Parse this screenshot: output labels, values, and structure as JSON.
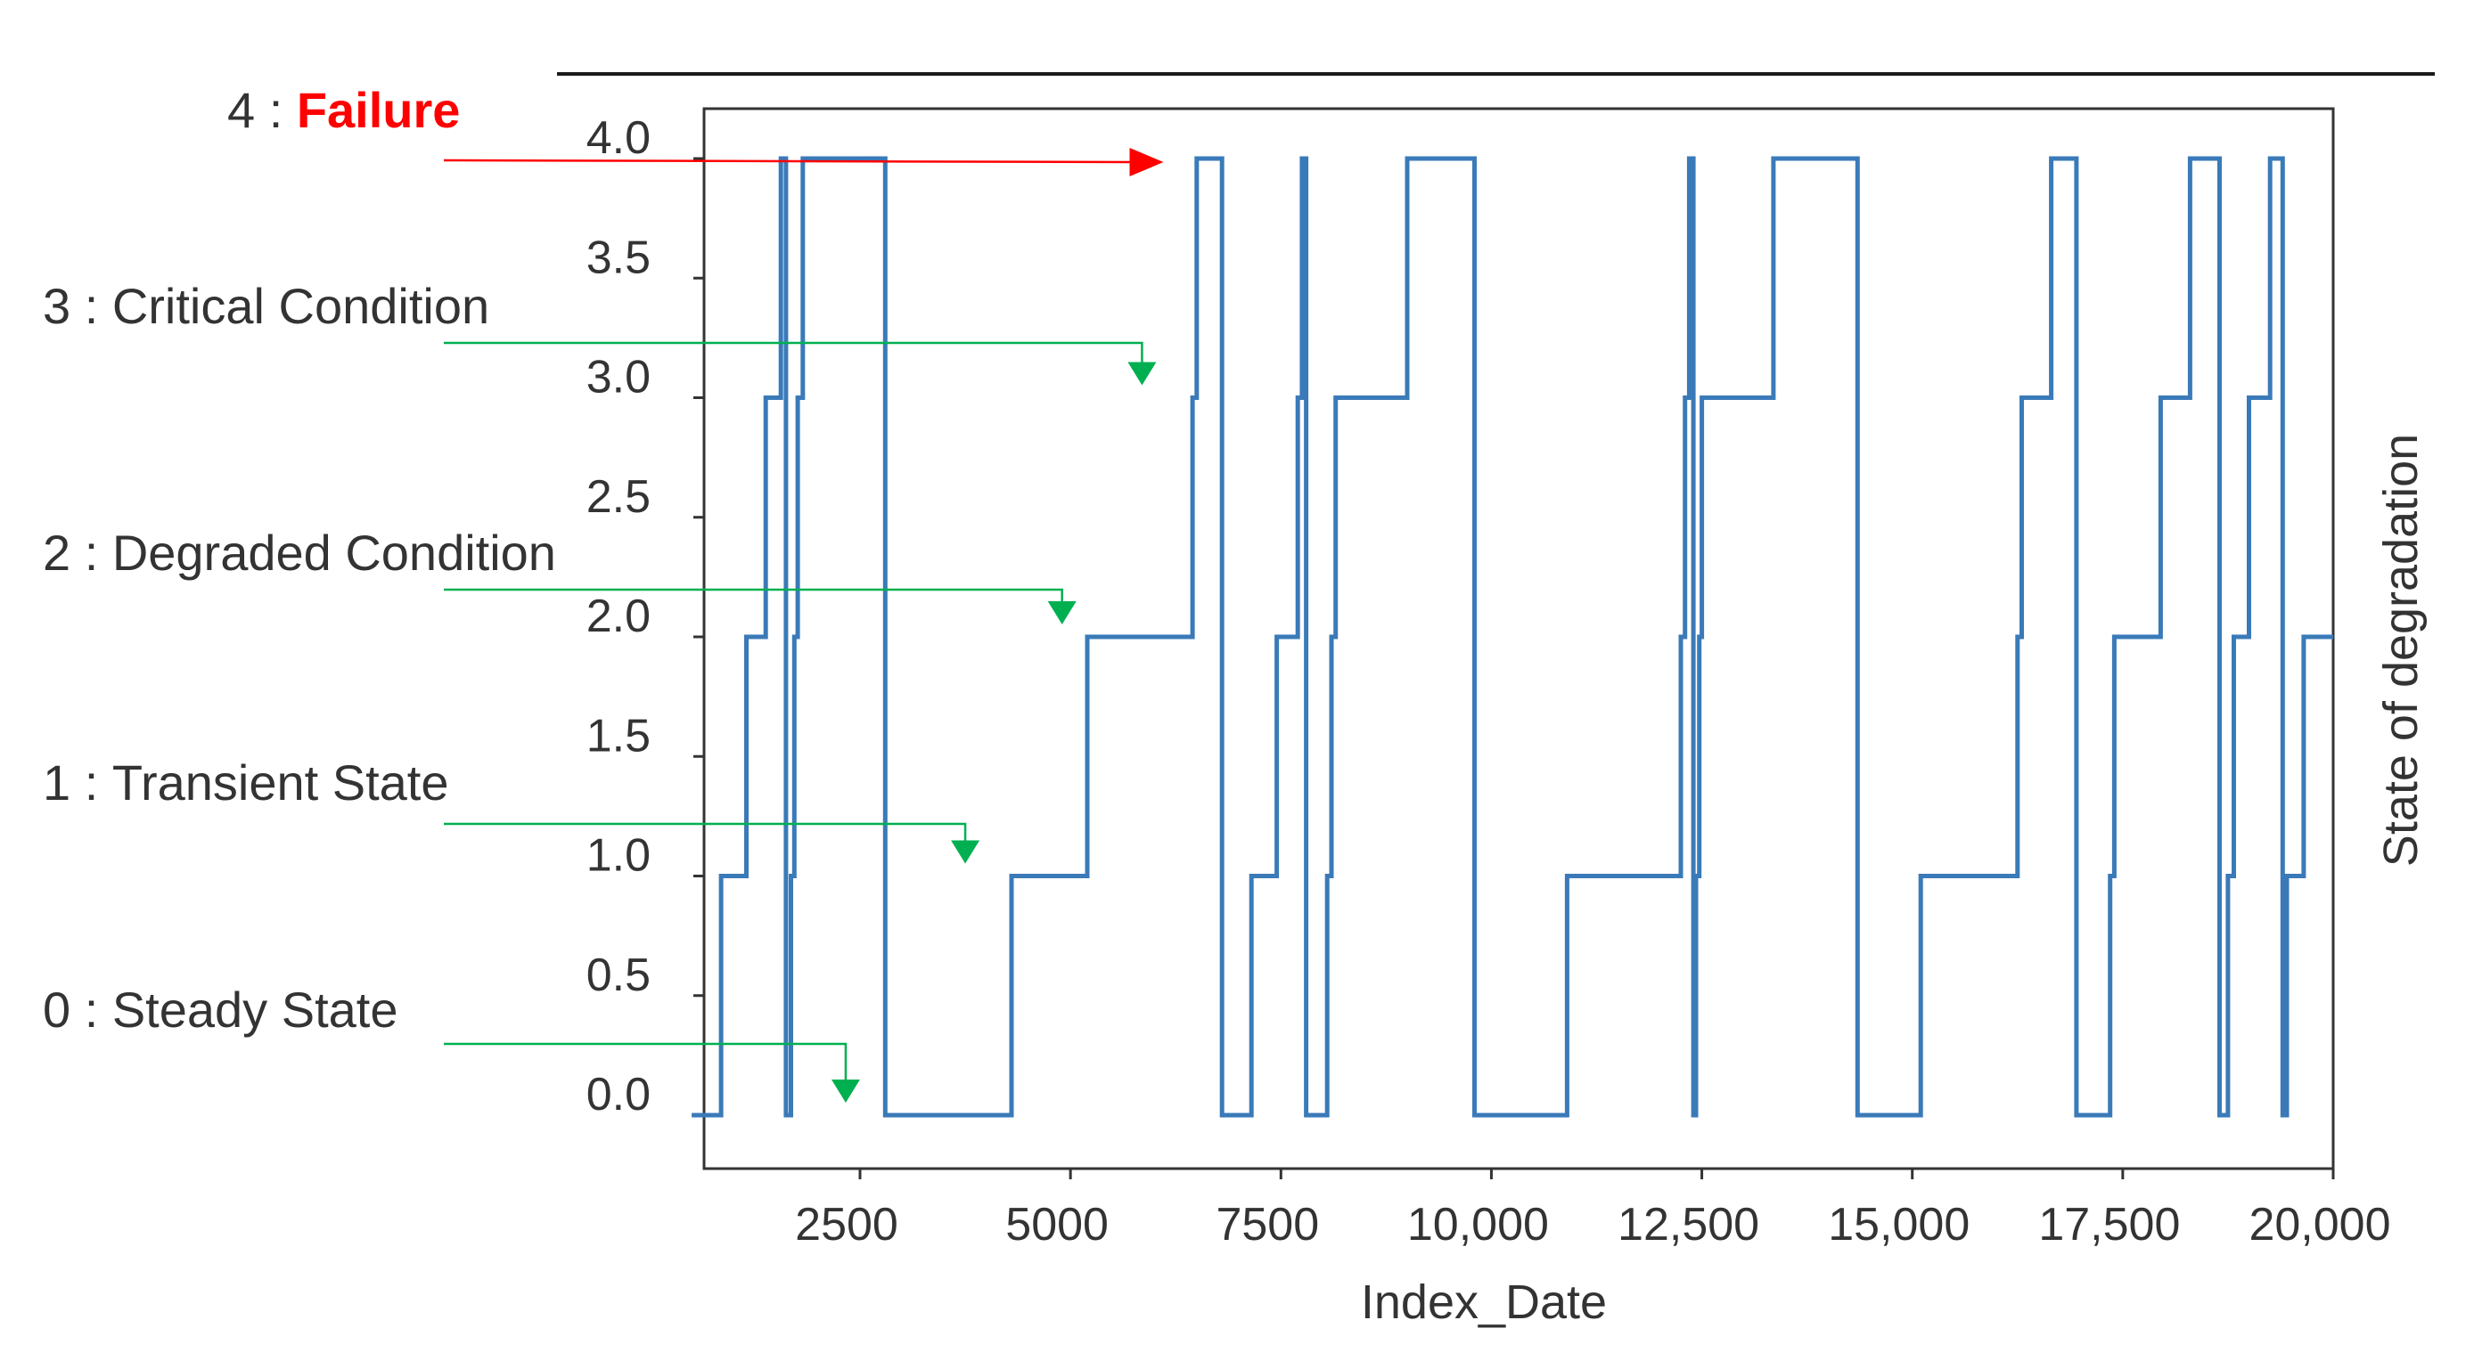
{
  "chart_data": {
    "type": "line",
    "title": "",
    "xlabel": "Index_Date",
    "ylabel": "State of degradation",
    "xlim": [
      500,
      20000
    ],
    "ylim": [
      -0.1,
      4.2
    ],
    "grid": false,
    "line_color": "#3a7ab8",
    "x_ticks": [
      {
        "value": 2500,
        "label": "2500"
      },
      {
        "value": 5000,
        "label": "5000"
      },
      {
        "value": 7500,
        "label": "7500"
      },
      {
        "value": 10000,
        "label": "10,000"
      },
      {
        "value": 12500,
        "label": "12,500"
      },
      {
        "value": 15000,
        "label": "15,000"
      },
      {
        "value": 17500,
        "label": "17,500"
      },
      {
        "value": 20000,
        "label": "20,000"
      }
    ],
    "y_ticks": [
      {
        "value": 0.0,
        "label": "0.0"
      },
      {
        "value": 0.5,
        "label": "0.5"
      },
      {
        "value": 1.0,
        "label": "1.0"
      },
      {
        "value": 1.5,
        "label": "1.5"
      },
      {
        "value": 2.0,
        "label": "2.0"
      },
      {
        "value": 2.5,
        "label": "2.5"
      },
      {
        "value": 3.0,
        "label": "3.0"
      },
      {
        "value": 3.5,
        "label": "3.5"
      },
      {
        "value": 4.0,
        "label": "4.0"
      }
    ],
    "series": [
      {
        "name": "State of degradation",
        "x": [
          500,
          850,
          850,
          1150,
          1150,
          1380,
          1380,
          1560,
          1560,
          1620,
          1620,
          1680,
          1680,
          1720,
          1720,
          1760,
          1760,
          1820,
          1820,
          2800,
          2800,
          4300,
          4300,
          5200,
          5200,
          6450,
          6450,
          6500,
          6500,
          6800,
          6800,
          7150,
          7150,
          7450,
          7450,
          7700,
          7700,
          7750,
          7750,
          7800,
          7800,
          8050,
          8050,
          8100,
          8100,
          8150,
          8150,
          9000,
          9000,
          9800,
          9800,
          10900,
          10900,
          12250,
          12250,
          12300,
          12300,
          12350,
          12350,
          12400,
          12400,
          12430,
          12430,
          12470,
          12470,
          12500,
          12500,
          13350,
          13350,
          14350,
          14350,
          15100,
          15100,
          16250,
          16250,
          16300,
          16300,
          16650,
          16650,
          16950,
          16950,
          17350,
          17350,
          17400,
          17400,
          17950,
          17950,
          18300,
          18300,
          18650,
          18650,
          18750,
          18750,
          18820,
          18820,
          19000,
          19000,
          19250,
          19250,
          19400,
          19400,
          19450,
          19450,
          19650,
          19650,
          20000
        ],
        "y": [
          0,
          0,
          1,
          1,
          2,
          2,
          3,
          3,
          4,
          4,
          0,
          0,
          1,
          1,
          2,
          2,
          3,
          3,
          4,
          4,
          0,
          0,
          1,
          1,
          2,
          2,
          3,
          3,
          4,
          4,
          0,
          0,
          1,
          1,
          2,
          2,
          3,
          3,
          4,
          4,
          0,
          0,
          1,
          1,
          2,
          2,
          3,
          3,
          4,
          4,
          0,
          0,
          1,
          1,
          2,
          2,
          3,
          3,
          4,
          4,
          0,
          0,
          1,
          1,
          2,
          2,
          3,
          3,
          4,
          4,
          0,
          0,
          1,
          1,
          2,
          2,
          3,
          3,
          4,
          4,
          0,
          0,
          1,
          1,
          2,
          2,
          3,
          3,
          4,
          4,
          0,
          0,
          1,
          1,
          2,
          2,
          3,
          3,
          4,
          4,
          0,
          0,
          1,
          1,
          2,
          2
        ]
      }
    ],
    "annotations": [
      {
        "state": 4,
        "prefix": "4 : ",
        "label": "Failure",
        "prefix_color": "#333333",
        "label_color": "#ff0000",
        "arrow_color": "#ff0000",
        "target_x": 6020,
        "target_y": 4.0
      },
      {
        "state": 3,
        "prefix": "3 : ",
        "label": "Critical Condition",
        "prefix_color": "#333333",
        "label_color": "#333333",
        "arrow_color": "#00b050",
        "target_x": 5850,
        "target_y": 3.0
      },
      {
        "state": 2,
        "prefix": "2 : ",
        "label": "Degraded Condition",
        "prefix_color": "#333333",
        "label_color": "#333333",
        "arrow_color": "#00b050",
        "target_x": 4900,
        "target_y": 2.0
      },
      {
        "state": 1,
        "prefix": "1 : ",
        "label": "Transient State",
        "prefix_color": "#333333",
        "label_color": "#333333",
        "arrow_color": "#00b050",
        "target_x": 3750,
        "target_y": 1.0
      },
      {
        "state": 0,
        "prefix": "0 : ",
        "label": "Steady State",
        "prefix_color": "#333333",
        "label_color": "#333333",
        "arrow_color": "#00b050",
        "target_x": 2330,
        "target_y": 0.0
      }
    ]
  }
}
